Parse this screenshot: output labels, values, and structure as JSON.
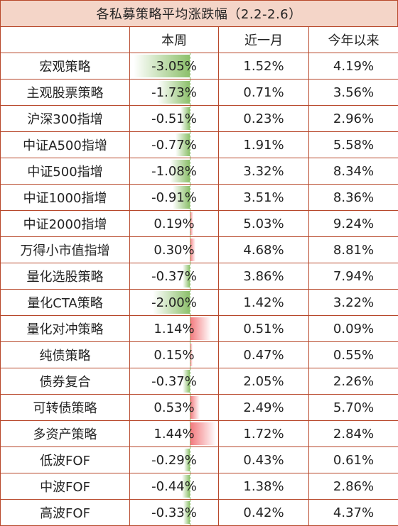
{
  "title": "各私募策略平均涨跌幅（2.2-2.6）",
  "headers": [
    "",
    "本周",
    "近一月",
    "今年以来"
  ],
  "rows": [
    {
      "name": "宏观策略",
      "week": "-3.05%",
      "month": "1.52%",
      "ytd": "4.19%"
    },
    {
      "name": "主观股票策略",
      "week": "-1.73%",
      "month": "0.71%",
      "ytd": "3.56%"
    },
    {
      "name": "沪深300指增",
      "week": "-0.51%",
      "month": "0.23%",
      "ytd": "2.96%"
    },
    {
      "name": "中证A500指增",
      "week": "-0.77%",
      "month": "1.91%",
      "ytd": "5.58%"
    },
    {
      "name": "中证500指增",
      "week": "-1.08%",
      "month": "3.32%",
      "ytd": "8.34%"
    },
    {
      "name": "中证1000指增",
      "week": "-0.91%",
      "month": "3.51%",
      "ytd": "8.36%"
    },
    {
      "name": "中证2000指增",
      "week": "0.19%",
      "month": "5.03%",
      "ytd": "9.24%"
    },
    {
      "name": "万得小市值指增",
      "week": "0.30%",
      "month": "4.68%",
      "ytd": "8.81%"
    },
    {
      "name": "量化选股策略",
      "week": "-0.37%",
      "month": "3.86%",
      "ytd": "7.94%"
    },
    {
      "name": "量化CTA策略",
      "week": "-2.00%",
      "month": "1.42%",
      "ytd": "3.22%"
    },
    {
      "name": "量化对冲策略",
      "week": "1.14%",
      "month": "0.51%",
      "ytd": "0.09%"
    },
    {
      "name": "纯债策略",
      "week": "0.15%",
      "month": "0.47%",
      "ytd": "0.55%"
    },
    {
      "name": "债券复合",
      "week": "-0.37%",
      "month": "2.05%",
      "ytd": "2.26%"
    },
    {
      "name": "可转债策略",
      "week": "0.53%",
      "month": "2.49%",
      "ytd": "5.70%"
    },
    {
      "name": "多资产策略",
      "week": "1.44%",
      "month": "1.72%",
      "ytd": "2.84%"
    },
    {
      "name": "低波FOF",
      "week": "-0.29%",
      "month": "0.43%",
      "ytd": "0.61%"
    },
    {
      "name": "中波FOF",
      "week": "-0.44%",
      "month": "1.38%",
      "ytd": "2.86%"
    },
    {
      "name": "高波FOF",
      "week": "-0.33%",
      "month": "0.42%",
      "ytd": "4.37%"
    }
  ],
  "colors": {
    "border": "#b7472a",
    "title_bg": "#f4d5c8",
    "negative_bar": "#8cc06b",
    "positive_bar": "#f2767a"
  }
}
